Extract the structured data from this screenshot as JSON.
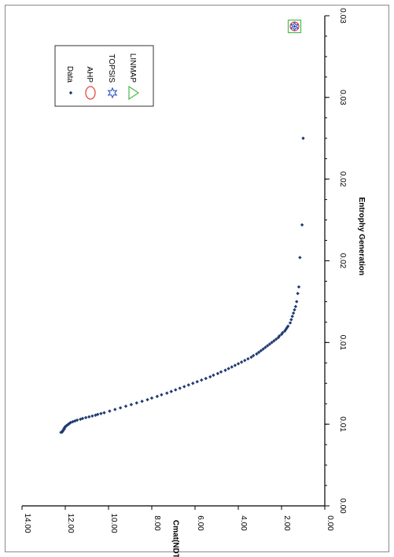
{
  "chart_data": {
    "type": "scatter",
    "orientation": "rotated 90 degrees clockwise",
    "xlabel": "Entrophy Generation",
    "ylabel": "Cmat(NDT)",
    "xlim": [
      0,
      0.03
    ],
    "ylim": [
      0,
      14
    ],
    "x_tick_labels": [
      "0.00",
      "0.01",
      "0.01",
      "0.02",
      "0.02",
      "0.03",
      "0.03"
    ],
    "y_tick_labels": [
      "0.00",
      "2.00",
      "4.00",
      "6.00",
      "8.00",
      "10.00",
      "12.00",
      "14.00"
    ],
    "grid": false,
    "legend_placement": "top-right",
    "legend": [
      {
        "name": "Data",
        "marker": "diamond",
        "color": "#1f3b73"
      },
      {
        "name": "AHP",
        "marker": "circle",
        "color": "#e0403a"
      },
      {
        "name": "TOPSIS",
        "marker": "star",
        "color": "#3355cc"
      },
      {
        "name": "LINMAP",
        "marker": "triangle",
        "color": "#4cb84c"
      }
    ],
    "series": [
      {
        "name": "Data",
        "points": [
          [
            0.0045,
            12.2
          ],
          [
            0.00452,
            12.15
          ],
          [
            0.00455,
            12.13
          ],
          [
            0.00458,
            12.12
          ],
          [
            0.00462,
            12.1
          ],
          [
            0.00466,
            12.08
          ],
          [
            0.0047,
            12.05
          ],
          [
            0.00475,
            12.05
          ],
          [
            0.0048,
            12.02
          ],
          [
            0.00485,
            12.0
          ],
          [
            0.0049,
            11.95
          ],
          [
            0.00495,
            11.9
          ],
          [
            0.005,
            11.85
          ],
          [
            0.00505,
            11.8
          ],
          [
            0.0051,
            11.75
          ],
          [
            0.00515,
            11.65
          ],
          [
            0.0052,
            11.55
          ],
          [
            0.00525,
            11.45
          ],
          [
            0.0053,
            11.3
          ],
          [
            0.00535,
            11.2
          ],
          [
            0.0054,
            11.05
          ],
          [
            0.00545,
            10.9
          ],
          [
            0.0055,
            10.75
          ],
          [
            0.00555,
            10.6
          ],
          [
            0.0056,
            10.5
          ],
          [
            0.00565,
            10.35
          ],
          [
            0.0057,
            10.2
          ],
          [
            0.0058,
            9.95
          ],
          [
            0.0059,
            9.7
          ],
          [
            0.006,
            9.45
          ],
          [
            0.0061,
            9.2
          ],
          [
            0.0062,
            8.95
          ],
          [
            0.0063,
            8.7
          ],
          [
            0.0064,
            8.45
          ],
          [
            0.0065,
            8.2
          ],
          [
            0.0066,
            8.0
          ],
          [
            0.0067,
            7.75
          ],
          [
            0.0068,
            7.55
          ],
          [
            0.0069,
            7.3
          ],
          [
            0.007,
            7.1
          ],
          [
            0.0071,
            6.9
          ],
          [
            0.0072,
            6.7
          ],
          [
            0.0073,
            6.5
          ],
          [
            0.0074,
            6.3
          ],
          [
            0.0075,
            6.1
          ],
          [
            0.0076,
            5.9
          ],
          [
            0.0077,
            5.7
          ],
          [
            0.0078,
            5.5
          ],
          [
            0.0079,
            5.3
          ],
          [
            0.008,
            5.15
          ],
          [
            0.0081,
            4.95
          ],
          [
            0.0082,
            4.8
          ],
          [
            0.0083,
            4.6
          ],
          [
            0.0084,
            4.45
          ],
          [
            0.0085,
            4.3
          ],
          [
            0.0086,
            4.15
          ],
          [
            0.0087,
            4.0
          ],
          [
            0.0088,
            3.85
          ],
          [
            0.0089,
            3.7
          ],
          [
            0.009,
            3.55
          ],
          [
            0.0091,
            3.4
          ],
          [
            0.0092,
            3.3
          ],
          [
            0.0093,
            3.15
          ],
          [
            0.0094,
            3.05
          ],
          [
            0.0095,
            2.95
          ],
          [
            0.0096,
            2.85
          ],
          [
            0.0097,
            2.75
          ],
          [
            0.0098,
            2.65
          ],
          [
            0.0099,
            2.55
          ],
          [
            0.01,
            2.45
          ],
          [
            0.0101,
            2.35
          ],
          [
            0.0102,
            2.25
          ],
          [
            0.0103,
            2.15
          ],
          [
            0.0104,
            2.1
          ],
          [
            0.0105,
            2.0
          ],
          [
            0.0106,
            1.95
          ],
          [
            0.0107,
            1.85
          ],
          [
            0.0108,
            1.8
          ],
          [
            0.0109,
            1.75
          ],
          [
            0.011,
            1.7
          ],
          [
            0.0112,
            1.6
          ],
          [
            0.0114,
            1.55
          ],
          [
            0.0116,
            1.5
          ],
          [
            0.0118,
            1.45
          ],
          [
            0.012,
            1.4
          ],
          [
            0.0122,
            1.35
          ],
          [
            0.0125,
            1.3
          ],
          [
            0.013,
            1.25
          ],
          [
            0.0134,
            1.2
          ],
          [
            0.0152,
            1.15
          ],
          [
            0.0172,
            1.05
          ],
          [
            0.0225,
            1.0
          ]
        ]
      },
      {
        "name": "AHP",
        "points": [
          [
            0.02935,
            1.4
          ]
        ]
      },
      {
        "name": "TOPSIS",
        "points": [
          [
            0.02935,
            1.4
          ]
        ]
      },
      {
        "name": "LINMAP",
        "points": [
          [
            0.02935,
            1.4
          ]
        ]
      }
    ]
  }
}
